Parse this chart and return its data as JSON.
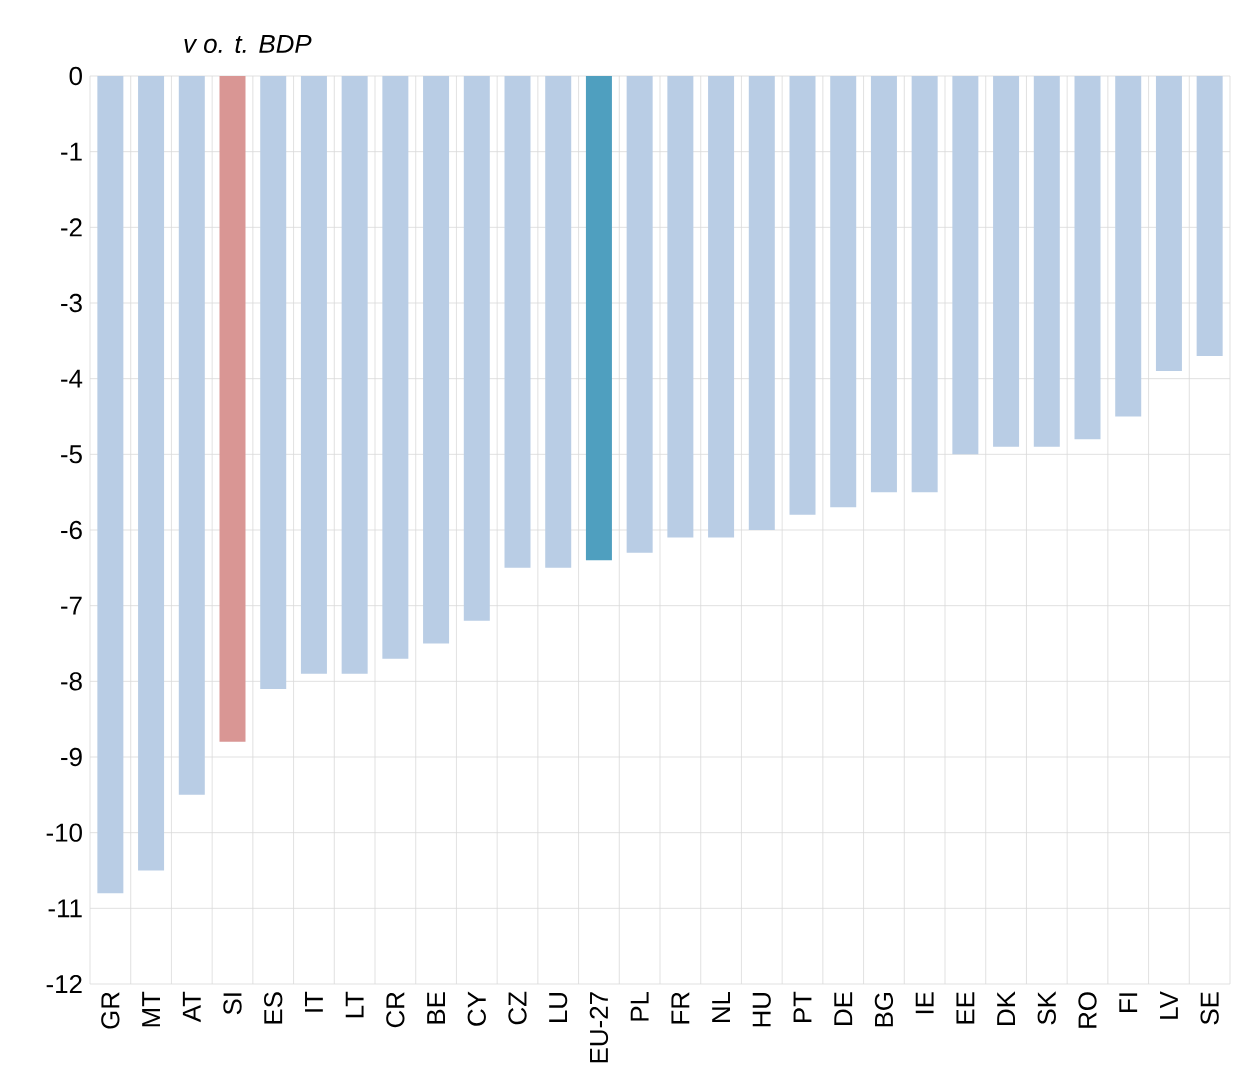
{
  "chart_data": {
    "type": "bar",
    "ylabel": "v o. t. BDP",
    "categories": [
      "GR",
      "MT",
      "AT",
      "SI",
      "ES",
      "IT",
      "LT",
      "CR",
      "BE",
      "CY",
      "CZ",
      "LU",
      "EU-27",
      "PL",
      "FR",
      "NL",
      "HU",
      "PT",
      "DE",
      "BG",
      "IE",
      "EE",
      "DK",
      "SK",
      "RO",
      "FI",
      "LV",
      "SE"
    ],
    "values": [
      -10.8,
      -10.5,
      -9.5,
      -8.8,
      -8.1,
      -7.9,
      -7.9,
      -7.7,
      -7.5,
      -7.2,
      -6.5,
      -6.5,
      -6.4,
      -6.3,
      -6.1,
      -6.1,
      -6.0,
      -5.8,
      -5.7,
      -5.5,
      -5.5,
      -5.0,
      -4.9,
      -4.9,
      -4.8,
      -4.5,
      -3.9,
      -3.7
    ],
    "colors": [
      "#b9cde5",
      "#b9cde5",
      "#b9cde5",
      "#d99694",
      "#b9cde5",
      "#b9cde5",
      "#b9cde5",
      "#b9cde5",
      "#b9cde5",
      "#b9cde5",
      "#b9cde5",
      "#b9cde5",
      "#4f9fbf",
      "#b9cde5",
      "#b9cde5",
      "#b9cde5",
      "#b9cde5",
      "#b9cde5",
      "#b9cde5",
      "#b9cde5",
      "#b9cde5",
      "#b9cde5",
      "#b9cde5",
      "#b9cde5",
      "#b9cde5",
      "#b9cde5",
      "#b9cde5",
      "#b9cde5"
    ],
    "ylim": [
      -12,
      0
    ],
    "yticks": [
      -12,
      -11,
      -10,
      -9,
      -8,
      -7,
      -6,
      -5,
      -4,
      -3,
      -2,
      -1,
      0
    ],
    "grid": true
  }
}
